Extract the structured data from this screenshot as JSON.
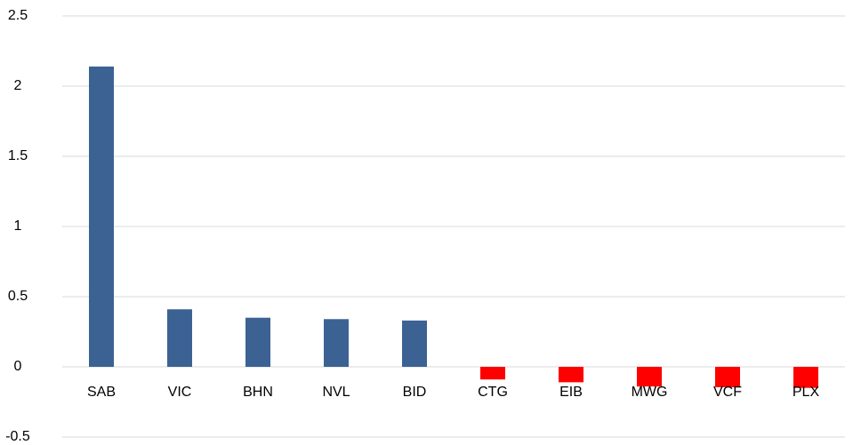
{
  "chart_data": {
    "type": "bar",
    "categories": [
      "SAB",
      "VIC",
      "BHN",
      "NVL",
      "BID",
      "CTG",
      "EIB",
      "MWG",
      "VCF",
      "PLX"
    ],
    "values": [
      2.14,
      0.41,
      0.35,
      0.34,
      0.33,
      -0.09,
      -0.11,
      -0.14,
      -0.145,
      -0.15
    ],
    "colors": [
      "#3b6293",
      "#3b6293",
      "#3b6293",
      "#3b6293",
      "#3b6293",
      "#ff0000",
      "#ff0000",
      "#ff0000",
      "#ff0000",
      "#ff0000"
    ],
    "ylim": [
      -0.5,
      2.5
    ],
    "yticks": [
      2.5,
      2,
      1.5,
      1,
      0.5,
      0,
      -0.5
    ],
    "grid": true
  }
}
